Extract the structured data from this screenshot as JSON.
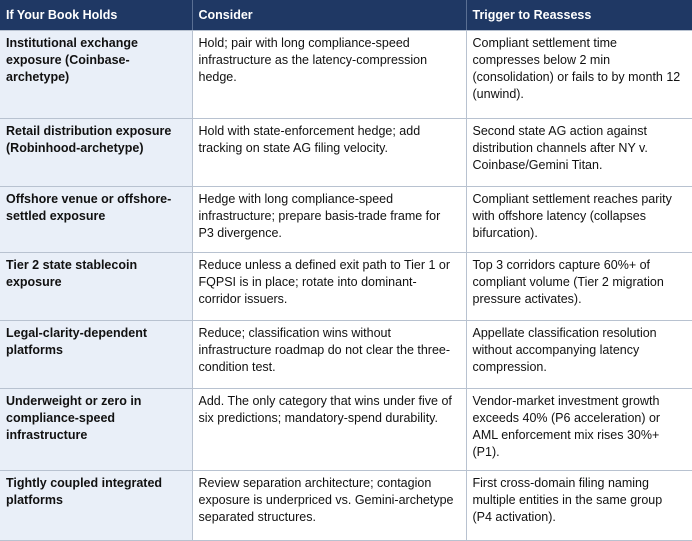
{
  "table": {
    "header": [
      "If Your Book Holds",
      "Consider",
      "Trigger to Reassess"
    ],
    "rows": [
      [
        "Institutional exchange exposure (Coinbase-archetype)",
        "Hold; pair with long compliance-speed infrastructure as the latency-compression hedge.",
        "Compliant settlement time compresses below 2 min (consolidation) or fails to by month 12 (unwind)."
      ],
      [
        "Retail distribution exposure (Robinhood-archetype)",
        "Hold with state-enforcement hedge; add tracking on state AG filing velocity.",
        "Second state AG action against distribution channels after NY v. Coinbase/Gemini Titan."
      ],
      [
        "Offshore venue or offshore-settled exposure",
        "Hedge with long compliance-speed infrastructure; prepare basis-trade frame for P3 divergence.",
        "Compliant settlement reaches parity with offshore latency (collapses bifurcation)."
      ],
      [
        "Tier 2 state stablecoin exposure",
        "Reduce unless a defined exit path to Tier 1 or FQPSI is in place; rotate into dominant-corridor issuers.",
        "Top 3 corridors capture 60%+ of compliant volume (Tier 2 migration pressure activates)."
      ],
      [
        "Legal-clarity-dependent platforms",
        "Reduce; classification wins without infrastructure roadmap do not clear the three-condition test.",
        "Appellate classification resolution without accompanying latency compression."
      ],
      [
        "Underweight or zero in compliance-speed infrastructure",
        "Add. The only category that wins under five of six predictions; mandatory-spend durability.",
        "Vendor-market investment growth exceeds 40% (P6 acceleration) or AML enforcement mix rises 30%+ (P1)."
      ],
      [
        "Tightly coupled integrated platforms",
        "Review separation architecture; contagion exposure is underpriced vs. Gemini-archetype separated structures.",
        "First cross-domain filing naming multiple entities in the same group (P4 activation)."
      ]
    ]
  }
}
